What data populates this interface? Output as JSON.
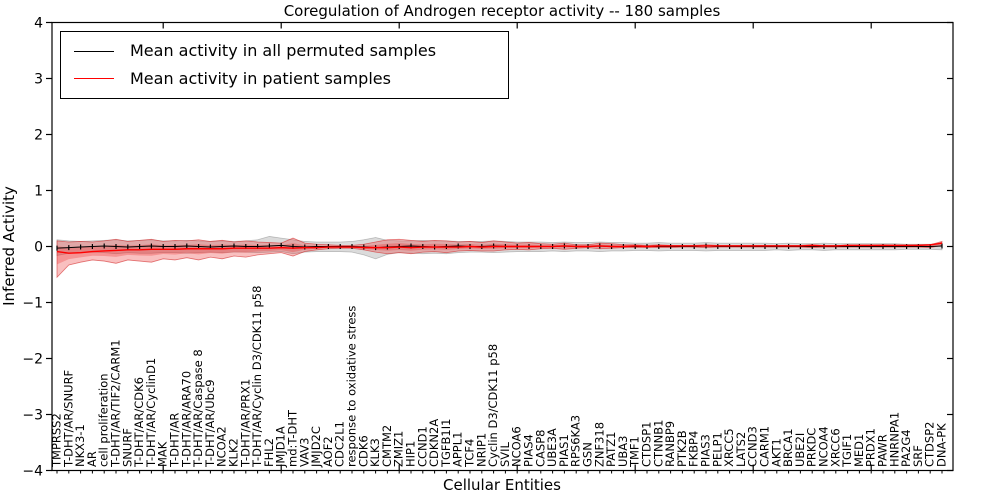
{
  "title": "Coregulation of Androgen receptor activity -- 180 samples",
  "legend": {
    "items": [
      {
        "label": "Mean activity in all permuted samples",
        "color": "#000000"
      },
      {
        "label": "Mean activity in patient samples",
        "color": "#ff0000"
      }
    ]
  },
  "chart_data": {
    "type": "line",
    "title": "Coregulation of Androgen receptor activity -- 180 samples",
    "xlabel": "Cellular Entities",
    "ylabel": "Inferred Activity",
    "ylim": [
      -4,
      4
    ],
    "ytick_labels": [
      "4",
      "3",
      "2",
      "1",
      "0",
      "−1",
      "−2",
      "−3",
      "−4"
    ],
    "x_major_tick_every": 10,
    "grid": false,
    "legend_position": "upper left",
    "categories": [
      "TMPRSS2",
      "T-DHT/AR/SNURF",
      "NKX3-1",
      "AR",
      "cell proliferation",
      "T-DHT/AR/TIF2/CARM1",
      "SNURF",
      "T-DHT/AR/CDK6",
      "T-DHT/AR/CyclinD1",
      "MAK",
      "T-DHT/AR",
      "T-DHT/AR/ARA70",
      "T-DHT/AR/Caspase 8",
      "T-DHT/AR/Ubc9",
      "NCOA2",
      "KLK2",
      "T-DHT/AR/PRX1",
      "T-DHT/AR/Cyclin D3/CDK11 p58",
      "FHL2",
      "JMJD1A",
      "md:T-DHT",
      "VAV3",
      "JMJD2C",
      "AOF2",
      "CDC2L1",
      "response to oxidative stress",
      "CDK6",
      "KLK3",
      "CMTM2",
      "ZMIZ1",
      "HIP1",
      "CCND1",
      "CDKN2A",
      "TGFB1I1",
      "APPL1",
      "TCF4",
      "NRIP1",
      "Cyclin D3/CDK11 p58",
      "SVIL",
      "NCOA6",
      "PIAS4",
      "CASP8",
      "UBE3A",
      "PIAS1",
      "RPS6KA3",
      "GSN",
      "ZNF318",
      "PATZ1",
      "UBA3",
      "TMF1",
      "CTDSP1",
      "CTNNB1",
      "RANBP9",
      "PTK2B",
      "FKBP4",
      "PIAS3",
      "PELP1",
      "XRCC5",
      "LATS2",
      "CCND3",
      "CARM1",
      "AKT1",
      "BRCA1",
      "UBE2I",
      "PRKDC",
      "NCOA4",
      "XRCC6",
      "TGIF1",
      "MED1",
      "PRDX1",
      "PAWR",
      "HNRNPA1",
      "PA2G4",
      "SRF",
      "CTDSP2",
      "DNA-PK"
    ],
    "series": [
      {
        "name": "Mean activity in all permuted samples",
        "color": "#000000",
        "band_fill": "rgba(0,0,0,0.14)",
        "band_edge": "rgba(0,0,0,0.22)",
        "values": [
          -0.03,
          -0.02,
          -0.01,
          0.0,
          0.01,
          0.0,
          -0.01,
          0.0,
          0.01,
          0.0,
          0.0,
          0.01,
          0.0,
          -0.01,
          0.0,
          0.01,
          0.0,
          0.0,
          0.01,
          0.02,
          0.0,
          -0.01,
          0.0,
          0.0,
          0.0,
          0.0,
          -0.01,
          -0.02,
          -0.01,
          0.0,
          0.01,
          0.0,
          -0.01,
          0.0,
          0.01,
          0.0,
          0.0,
          0.01,
          0.0,
          0.0,
          0.0,
          0.0,
          0.0,
          0.01,
          0.0,
          0.0,
          0.01,
          0.0,
          0.0,
          0.0,
          0.0,
          0.0,
          0.0,
          0.0,
          0.0,
          0.01,
          0.0,
          0.0,
          0.0,
          0.0,
          0.0,
          0.0,
          0.0,
          0.0,
          0.0,
          0.0,
          0.0,
          0.0,
          0.0,
          0.0,
          0.0,
          0.0,
          0.0,
          0.0,
          0.0,
          0.01
        ],
        "band_upper": [
          0.12,
          0.1,
          0.09,
          0.1,
          0.11,
          0.12,
          0.1,
          0.11,
          0.12,
          0.1,
          0.1,
          0.11,
          0.1,
          0.09,
          0.1,
          0.09,
          0.1,
          0.12,
          0.18,
          0.15,
          0.12,
          0.09,
          0.08,
          0.08,
          0.08,
          0.09,
          0.12,
          0.16,
          0.11,
          0.1,
          0.1,
          0.11,
          0.1,
          0.1,
          0.09,
          0.09,
          0.09,
          0.1,
          0.09,
          0.08,
          0.08,
          0.08,
          0.07,
          0.08,
          0.07,
          0.07,
          0.08,
          0.07,
          0.07,
          0.06,
          0.06,
          0.07,
          0.06,
          0.06,
          0.06,
          0.07,
          0.06,
          0.06,
          0.06,
          0.06,
          0.06,
          0.05,
          0.06,
          0.05,
          0.05,
          0.06,
          0.05,
          0.05,
          0.05,
          0.05,
          0.05,
          0.05,
          0.04,
          0.04,
          0.04,
          0.05
        ],
        "band_lower": [
          -0.16,
          -0.12,
          -0.11,
          -0.1,
          -0.11,
          -0.13,
          -0.11,
          -0.12,
          -0.12,
          -0.11,
          -0.11,
          -0.12,
          -0.11,
          -0.1,
          -0.11,
          -0.1,
          -0.1,
          -0.11,
          -0.1,
          -0.09,
          -0.13,
          -0.1,
          -0.09,
          -0.09,
          -0.09,
          -0.1,
          -0.15,
          -0.22,
          -0.14,
          -0.11,
          -0.12,
          -0.13,
          -0.12,
          -0.13,
          -0.11,
          -0.1,
          -0.1,
          -0.11,
          -0.1,
          -0.09,
          -0.09,
          -0.09,
          -0.08,
          -0.09,
          -0.08,
          -0.08,
          -0.09,
          -0.08,
          -0.08,
          -0.07,
          -0.07,
          -0.08,
          -0.07,
          -0.07,
          -0.07,
          -0.08,
          -0.07,
          -0.07,
          -0.07,
          -0.07,
          -0.07,
          -0.06,
          -0.07,
          -0.06,
          -0.06,
          -0.07,
          -0.06,
          -0.06,
          -0.06,
          -0.06,
          -0.06,
          -0.06,
          -0.05,
          -0.05,
          -0.05,
          -0.06
        ]
      },
      {
        "name": "Mean activity in patient samples",
        "color": "#ff0000",
        "band_fill": "rgba(235,45,45,0.30)",
        "band_edge": "rgba(210,35,35,0.60)",
        "inner_band": true,
        "values": [
          -0.09,
          -0.12,
          -0.11,
          -0.09,
          -0.08,
          -0.07,
          -0.06,
          -0.06,
          -0.05,
          -0.05,
          -0.05,
          -0.04,
          -0.04,
          -0.04,
          -0.04,
          -0.03,
          -0.03,
          -0.03,
          -0.03,
          -0.02,
          -0.03,
          -0.02,
          -0.02,
          -0.01,
          -0.01,
          -0.01,
          -0.02,
          -0.02,
          -0.02,
          -0.01,
          -0.02,
          -0.01,
          -0.01,
          -0.01,
          -0.01,
          0.0,
          -0.01,
          0.0,
          0.0,
          0.0,
          0.0,
          0.0,
          0.0,
          0.01,
          0.0,
          0.0,
          0.01,
          0.0,
          0.0,
          0.01,
          0.0,
          0.01,
          0.01,
          0.01,
          0.01,
          0.01,
          0.01,
          0.01,
          0.01,
          0.01,
          0.01,
          0.01,
          0.01,
          0.01,
          0.02,
          0.01,
          0.01,
          0.02,
          0.02,
          0.02,
          0.02,
          0.02,
          0.02,
          0.02,
          0.03,
          0.06
        ],
        "band_upper": [
          0.1,
          0.08,
          0.09,
          0.08,
          0.1,
          0.13,
          0.09,
          0.11,
          0.13,
          0.09,
          0.11,
          0.1,
          0.12,
          0.09,
          0.11,
          0.08,
          0.1,
          0.08,
          0.07,
          0.06,
          0.15,
          0.06,
          0.04,
          0.03,
          0.02,
          0.02,
          0.04,
          0.08,
          0.12,
          0.13,
          0.11,
          0.09,
          0.11,
          0.1,
          0.08,
          0.09,
          0.07,
          0.1,
          0.08,
          0.06,
          0.07,
          0.05,
          0.04,
          0.06,
          0.03,
          0.03,
          0.06,
          0.05,
          0.03,
          0.03,
          0.02,
          0.03,
          0.02,
          0.02,
          0.02,
          0.03,
          0.02,
          0.02,
          0.02,
          0.02,
          0.02,
          0.02,
          0.02,
          0.02,
          0.03,
          0.02,
          0.02,
          0.02,
          0.02,
          0.02,
          0.03,
          0.02,
          0.02,
          0.03,
          0.03,
          0.09
        ],
        "band_lower": [
          -0.55,
          -0.33,
          -0.28,
          -0.24,
          -0.26,
          -0.3,
          -0.24,
          -0.26,
          -0.28,
          -0.22,
          -0.24,
          -0.2,
          -0.24,
          -0.19,
          -0.22,
          -0.17,
          -0.19,
          -0.15,
          -0.13,
          -0.11,
          -0.17,
          -0.09,
          -0.06,
          -0.04,
          -0.03,
          -0.03,
          -0.06,
          -0.1,
          -0.13,
          -0.11,
          -0.13,
          -0.1,
          -0.09,
          -0.11,
          -0.08,
          -0.07,
          -0.08,
          -0.08,
          -0.06,
          -0.05,
          -0.06,
          -0.04,
          -0.03,
          -0.05,
          -0.03,
          -0.02,
          -0.04,
          -0.03,
          -0.02,
          -0.02,
          -0.02,
          -0.02,
          -0.02,
          -0.01,
          -0.01,
          -0.02,
          -0.01,
          -0.01,
          -0.01,
          -0.01,
          -0.01,
          -0.01,
          -0.01,
          -0.01,
          -0.02,
          -0.01,
          -0.01,
          -0.01,
          -0.01,
          -0.01,
          -0.01,
          -0.01,
          -0.01,
          -0.01,
          -0.02,
          0.02
        ]
      }
    ]
  }
}
